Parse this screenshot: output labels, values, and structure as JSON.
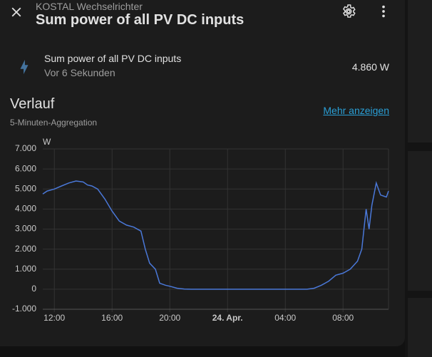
{
  "header": {
    "subtitle": "KOSTAL Wechselrichter",
    "title": "Sum power of all PV DC inputs"
  },
  "entity": {
    "name": "Sum power of all PV DC inputs",
    "last_changed": "Vor 6 Sekunden",
    "state": "4.860 W"
  },
  "history": {
    "title": "Verlauf",
    "subtitle": "5-Minuten-Aggregation",
    "link": "Mehr anzeigen"
  },
  "chart_data": {
    "type": "line",
    "y_unit": "W",
    "color": "#4a78d8",
    "grid": true,
    "x": [
      11.2,
      11.5,
      12,
      12.5,
      13,
      13.5,
      14,
      14.3,
      14.6,
      15,
      15.5,
      16,
      16.5,
      17,
      17.5,
      18,
      18.3,
      18.6,
      19,
      19.3,
      19.7,
      20,
      20.5,
      21,
      21.5,
      25,
      29.5,
      30,
      30.5,
      31,
      31.5,
      32,
      32.5,
      33,
      33.3,
      33.6,
      33.8,
      34,
      34.3,
      34.6,
      35,
      35.15
    ],
    "values": [
      4750,
      4900,
      5000,
      5150,
      5300,
      5400,
      5350,
      5200,
      5150,
      5000,
      4500,
      3900,
      3400,
      3200,
      3100,
      2900,
      2000,
      1300,
      1000,
      300,
      200,
      150,
      50,
      10,
      0,
      0,
      0,
      50,
      200,
      400,
      700,
      800,
      1000,
      1400,
      2000,
      4000,
      3000,
      4200,
      5300,
      4700,
      4600,
      4900
    ],
    "xlim": [
      11.2,
      35.15
    ],
    "xticks": [
      {
        "value": 12,
        "label": "12:00"
      },
      {
        "value": 16,
        "label": "16:00"
      },
      {
        "value": 20,
        "label": "20:00"
      },
      {
        "value": 24,
        "label": "24. Apr."
      },
      {
        "value": 28,
        "label": "04:00"
      },
      {
        "value": 32,
        "label": "08:00"
      }
    ],
    "ylim": [
      -1000,
      7000
    ],
    "yticks": [
      {
        "value": -1000,
        "label": "-1.000"
      },
      0,
      {
        "value": 1000,
        "label": "1.000"
      },
      {
        "value": 2000,
        "label": "2.000"
      },
      {
        "value": 3000,
        "label": "3.000"
      },
      {
        "value": 4000,
        "label": "4.000"
      },
      {
        "value": 5000,
        "label": "5.000"
      },
      {
        "value": 6000,
        "label": "6.000"
      },
      {
        "value": 7000,
        "label": "7.000"
      }
    ]
  }
}
